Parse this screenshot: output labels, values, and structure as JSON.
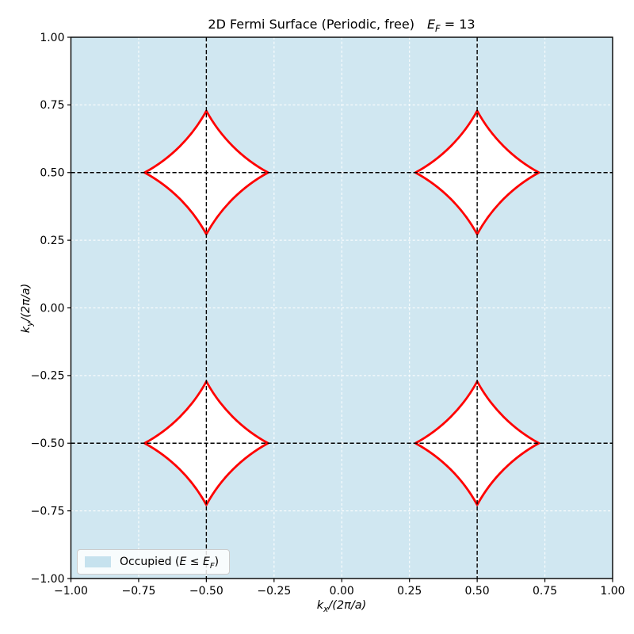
{
  "title": {
    "main": "2D Fermi Surface (Periodic, free)",
    "ef_symbol": "E",
    "ef_subscript": "F",
    "ef_equals": " = 13"
  },
  "x_axis": {
    "label_symbol": "k",
    "label_subscript": "x",
    "label_rest": "/(2π/a)",
    "ticks": [
      "−1.00",
      "−0.75",
      "−0.50",
      "−0.25",
      "0.00",
      "0.25",
      "0.50",
      "0.75",
      "1.00"
    ]
  },
  "y_axis": {
    "label_symbol": "k",
    "label_subscript": "y",
    "label_rest": "/(2π/a)",
    "ticks": [
      "1.00",
      "0.75",
      "0.50",
      "0.25",
      "0.00",
      "−0.25",
      "−0.50",
      "−0.75",
      "−1.00"
    ]
  },
  "legend": {
    "pre": "Occupied (",
    "E1": "E",
    "relation": " ≤ ",
    "E2": "E",
    "E2_sub": "F",
    "post": ")"
  },
  "colors": {
    "occupied_fill": "#d0e7f1",
    "pocket_fill": "#ffffff",
    "fermi_contour": "#ff0000",
    "grid_line": "#ffffff",
    "guide_line": "#000000",
    "axis": "#000000",
    "legend_swatch": "#c6e2ee",
    "legend_border": "#cccccc"
  },
  "chart_data": {
    "type": "contour",
    "title": "2D Fermi Surface (Periodic, free)  E_F = 13",
    "fermi_energy_EF": 13,
    "xlabel": "k_x/(2π/a)",
    "ylabel": "k_y/(2π/a)",
    "xlim": [
      -1,
      1
    ],
    "ylim": [
      -1,
      1
    ],
    "x_tick_values": [
      -1,
      -0.75,
      -0.5,
      -0.25,
      0,
      0.25,
      0.5,
      0.75,
      1
    ],
    "y_tick_values": [
      1,
      0.75,
      0.5,
      0.25,
      0,
      -0.25,
      -0.5,
      -0.75,
      -1
    ],
    "grid": true,
    "grid_tick_step": 0.25,
    "occupied_region": "entire plotted zone shaded except four star-shaped unoccupied pockets",
    "unoccupied_pockets": {
      "centers": [
        [
          -0.5,
          0.5
        ],
        [
          0.5,
          0.5
        ],
        [
          -0.5,
          -0.5
        ],
        [
          0.5,
          -0.5
        ]
      ],
      "vertex_offset": 0.228,
      "arc_radius": 0.569,
      "arc_circle_centers": "nearest reciprocal-lattice points at center ±(0.5, 0.5)"
    },
    "guide_lines": {
      "x": [
        -0.5,
        0.5
      ],
      "y": [
        -0.5,
        0.5
      ],
      "style": "dashed black"
    },
    "legend_position": "lower left"
  }
}
